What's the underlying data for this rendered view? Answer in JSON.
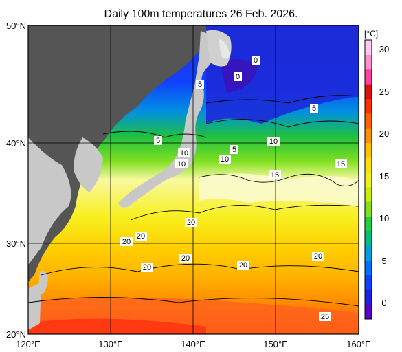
{
  "title": "Daily 100m temperatures 26 Feb. 2026.",
  "unit": "[°C]",
  "axes": {
    "lon_ticks": [
      "120°E",
      "130°E",
      "140°E",
      "150°E",
      "160°E"
    ],
    "lat_ticks": [
      "50°N",
      "40°N",
      "30°N",
      "20°N"
    ]
  },
  "colorbar": {
    "ticks": [
      "30",
      "25",
      "20",
      "15",
      "10",
      "5",
      "0"
    ],
    "colors": [
      "#5a00c8",
      "#2020e0",
      "#1040ff",
      "#0070ff",
      "#00a0e0",
      "#00c080",
      "#20d040",
      "#80e020",
      "#c8f000",
      "#f0f020",
      "#ffe000",
      "#ffc000",
      "#ff9000",
      "#ff6000",
      "#ff3000",
      "#e01010",
      "#ff40a0",
      "#ff90d0",
      "#ffc8f0"
    ]
  },
  "contour_labels": [
    "0",
    "0",
    "5",
    "5",
    "5",
    "5",
    "10",
    "10",
    "10",
    "10",
    "15",
    "15",
    "20",
    "20",
    "20",
    "20",
    "20",
    "20",
    "20",
    "25"
  ],
  "colors": {
    "land": "#555555",
    "land_far": "#c8c8c8",
    "frame": "#000000"
  }
}
